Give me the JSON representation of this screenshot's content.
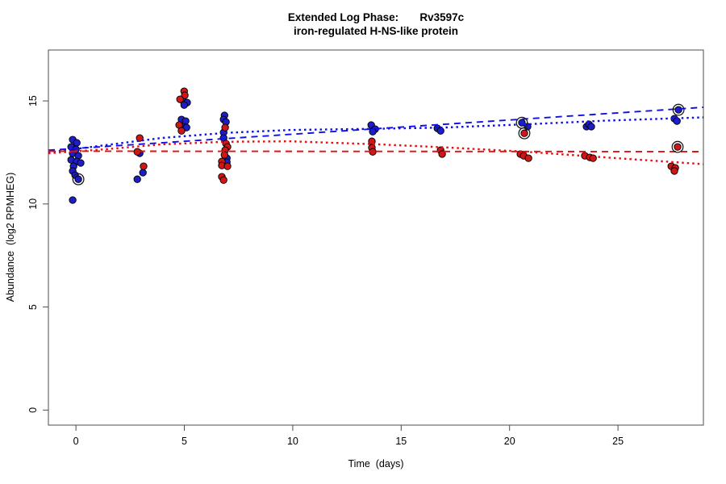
{
  "title": {
    "line1": "Extended Log Phase:       Rv3597c",
    "line2": "iron-regulated H-NS-like protein"
  },
  "chart_data": {
    "type": "scatter",
    "title": "Extended Log Phase: Rv3597c — iron-regulated H-NS-like protein",
    "xlabel": "Time  (days)",
    "ylabel": "Abundance  (log2 RPMHEG)",
    "xlim": [
      -1.27,
      28.94
    ],
    "ylim": [
      -0.73,
      17.47
    ],
    "xticks": [
      0,
      5,
      10,
      15,
      20,
      25
    ],
    "yticks": [
      0,
      5,
      10,
      15
    ],
    "grid": false,
    "legend": "none",
    "colors": {
      "blue_points": "#1e1ec8",
      "red_points": "#d01717",
      "blue_line": "#0f0fe8",
      "red_line": "#e60f0f",
      "circle_marker": "#1a1a1a",
      "axis": "#4d4d4d"
    },
    "series": [
      {
        "name": "blue",
        "color_key": "blue_points",
        "points": [
          [
            -0.15,
            13.12
          ],
          [
            0.04,
            12.97
          ],
          [
            -0.22,
            12.77
          ],
          [
            0.0,
            12.65
          ],
          [
            -0.15,
            12.46
          ],
          [
            0.11,
            12.34
          ],
          [
            -0.22,
            12.14
          ],
          [
            0.04,
            12.06
          ],
          [
            0.22,
            11.99
          ],
          [
            -0.11,
            11.83
          ],
          [
            -0.15,
            11.6
          ],
          [
            -0.04,
            11.4
          ],
          [
            0.11,
            11.2
          ],
          [
            -0.15,
            10.19
          ],
          [
            2.94,
            12.46
          ],
          [
            3.09,
            11.52
          ],
          [
            2.83,
            11.2
          ],
          [
            4.95,
            15.0
          ],
          [
            5.13,
            14.92
          ],
          [
            4.99,
            14.8
          ],
          [
            4.87,
            14.1
          ],
          [
            5.06,
            14.02
          ],
          [
            4.95,
            13.75
          ],
          [
            5.1,
            13.71
          ],
          [
            6.85,
            14.3
          ],
          [
            6.81,
            14.1
          ],
          [
            6.92,
            13.98
          ],
          [
            6.81,
            13.47
          ],
          [
            6.81,
            13.2
          ],
          [
            6.96,
            12.22
          ],
          [
            6.96,
            12.03
          ],
          [
            13.62,
            13.83
          ],
          [
            13.8,
            13.63
          ],
          [
            13.69,
            13.51
          ],
          [
            16.67,
            13.67
          ],
          [
            16.82,
            13.55
          ],
          [
            20.57,
            13.94
          ],
          [
            20.83,
            13.75
          ],
          [
            23.55,
            13.75
          ],
          [
            23.66,
            13.86
          ],
          [
            23.77,
            13.75
          ],
          [
            27.79,
            14.57
          ],
          [
            27.6,
            14.14
          ],
          [
            27.72,
            14.02
          ]
        ]
      },
      {
        "name": "red",
        "color_key": "red_points",
        "points": [
          [
            2.94,
            13.2
          ],
          [
            2.83,
            12.53
          ],
          [
            3.12,
            11.83
          ],
          [
            4.99,
            15.47
          ],
          [
            5.02,
            15.27
          ],
          [
            4.8,
            15.08
          ],
          [
            4.76,
            13.83
          ],
          [
            4.87,
            13.55
          ],
          [
            6.88,
            13.71
          ],
          [
            6.92,
            12.93
          ],
          [
            6.99,
            12.77
          ],
          [
            6.88,
            12.61
          ],
          [
            6.85,
            12.38
          ],
          [
            6.73,
            12.06
          ],
          [
            6.73,
            11.87
          ],
          [
            6.99,
            11.83
          ],
          [
            6.73,
            11.32
          ],
          [
            6.81,
            11.16
          ],
          [
            13.65,
            13.04
          ],
          [
            13.65,
            12.73
          ],
          [
            13.69,
            12.53
          ],
          [
            16.82,
            12.61
          ],
          [
            16.89,
            12.42
          ],
          [
            20.68,
            13.43
          ],
          [
            20.5,
            12.42
          ],
          [
            20.65,
            12.34
          ],
          [
            20.87,
            12.22
          ],
          [
            23.47,
            12.34
          ],
          [
            23.7,
            12.26
          ],
          [
            23.85,
            12.22
          ],
          [
            27.75,
            12.77
          ],
          [
            27.46,
            11.83
          ],
          [
            27.64,
            11.75
          ],
          [
            27.6,
            11.6
          ]
        ]
      }
    ],
    "circled_points": [
      {
        "series": "blue",
        "x": 0.11,
        "y": 11.2
      },
      {
        "series": "blue",
        "x": 20.57,
        "y": 13.94
      },
      {
        "series": "red",
        "x": 20.68,
        "y": 13.43
      },
      {
        "series": "blue",
        "x": 27.79,
        "y": 14.57
      },
      {
        "series": "red",
        "x": 27.75,
        "y": 12.77
      }
    ],
    "trend_lines": [
      {
        "name": "blue-dashed-lm",
        "color_key": "blue_line",
        "dash": "dashed",
        "points": [
          [
            -1.27,
            12.61
          ],
          [
            28.94,
            14.69
          ]
        ]
      },
      {
        "name": "blue-dotted-loess",
        "color_key": "blue_line",
        "dash": "dotted",
        "points": [
          [
            -1.27,
            12.5
          ],
          [
            1.34,
            12.85
          ],
          [
            3.94,
            13.2
          ],
          [
            6.92,
            13.45
          ],
          [
            9.9,
            13.59
          ],
          [
            13.99,
            13.65
          ],
          [
            16.96,
            13.71
          ],
          [
            20.68,
            13.86
          ],
          [
            24.4,
            14.04
          ],
          [
            28.94,
            14.2
          ]
        ]
      },
      {
        "name": "red-dashed-lm",
        "color_key": "red_line",
        "dash": "dashed",
        "points": [
          [
            -1.27,
            12.56
          ],
          [
            28.94,
            12.54
          ]
        ]
      },
      {
        "name": "red-dotted-loess",
        "color_key": "red_line",
        "dash": "dotted",
        "points": [
          [
            -1.27,
            12.46
          ],
          [
            1.34,
            12.65
          ],
          [
            3.94,
            12.89
          ],
          [
            6.92,
            13.02
          ],
          [
            9.9,
            13.04
          ],
          [
            13.99,
            12.89
          ],
          [
            16.96,
            12.75
          ],
          [
            20.68,
            12.54
          ],
          [
            24.4,
            12.26
          ],
          [
            28.94,
            11.93
          ]
        ]
      }
    ]
  }
}
